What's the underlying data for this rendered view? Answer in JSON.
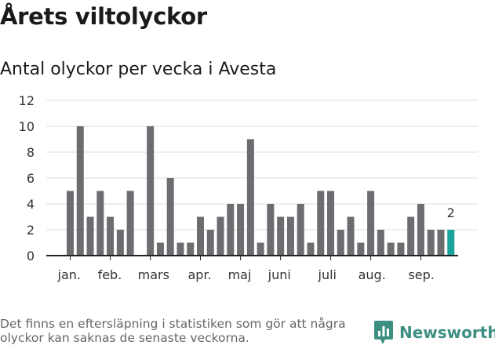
{
  "title": "Årets viltolyckor",
  "subtitle": "Antal olyckor per vecka i Avesta",
  "footnote": "Det finns en eftersläpning i statistiken som gör att några olyckor kan saknas de senaste veckorna.",
  "brand": {
    "name": "Newsworthy",
    "icon": "bar-chart-speech-bubble-icon",
    "color": "#3d8f82"
  },
  "chart_data": {
    "type": "bar",
    "x_unit": "week",
    "weeks": [
      1,
      2,
      3,
      4,
      5,
      6,
      7,
      8,
      9,
      10,
      11,
      12,
      13,
      14,
      15,
      16,
      17,
      18,
      19,
      20,
      21,
      22,
      23,
      24,
      25,
      26,
      27,
      28,
      29,
      30,
      31,
      32,
      33,
      34,
      35,
      36,
      37,
      38,
      39
    ],
    "values": [
      5,
      10,
      3,
      5,
      3,
      2,
      5,
      0,
      10,
      1,
      6,
      1,
      1,
      3,
      2,
      3,
      4,
      4,
      9,
      1,
      4,
      3,
      3,
      4,
      1,
      5,
      5,
      2,
      3,
      1,
      5,
      2,
      1,
      1,
      3,
      4,
      2,
      2,
      2
    ],
    "highlight": {
      "week": 39,
      "label": "2",
      "color": "#1aa39a"
    },
    "bar_color": "#6d6c70",
    "ylim": [
      0,
      12
    ],
    "yticks": [
      "0",
      "2",
      "4",
      "6",
      "8",
      "10",
      "12"
    ],
    "month_labels": [
      {
        "label": "jan.",
        "week": 1
      },
      {
        "label": "feb.",
        "week": 5
      },
      {
        "label": "mars",
        "week": 9
      },
      {
        "label": "apr.",
        "week": 14
      },
      {
        "label": "maj",
        "week": 18
      },
      {
        "label": "juni",
        "week": 22
      },
      {
        "label": "juli",
        "week": 27
      },
      {
        "label": "aug.",
        "week": 31
      },
      {
        "label": "sep.",
        "week": 36
      }
    ],
    "grid": true
  }
}
